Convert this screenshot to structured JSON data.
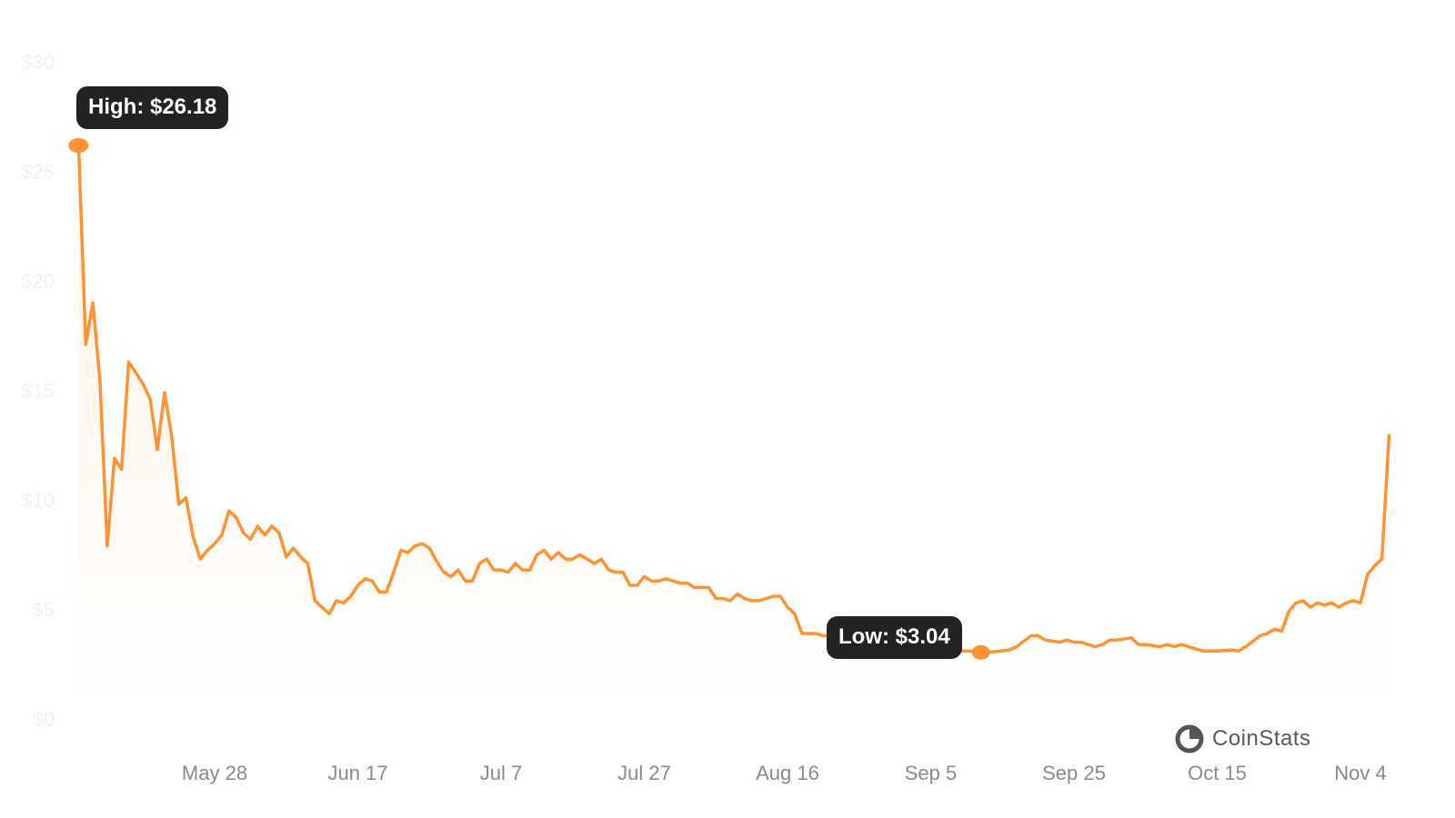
{
  "chart_data": {
    "type": "area",
    "title": "",
    "xlabel": "",
    "ylabel": "",
    "ylim": [
      0,
      30
    ],
    "y_ticks": [
      "$0",
      "$5",
      "$10",
      "$15",
      "$20",
      "$25",
      "$30"
    ],
    "y_tick_values": [
      0,
      5,
      10,
      15,
      20,
      25,
      30
    ],
    "x_ticks": [
      "May 28",
      "Jun 17",
      "Jul 7",
      "Jul 27",
      "Aug 16",
      "Sep 5",
      "Sep 25",
      "Oct 15",
      "Nov 4"
    ],
    "grid": false,
    "line_color": "#ff9332",
    "fill_color": "#ff9332",
    "points": [
      [
        "May 9",
        26.18
      ],
      [
        "May 10",
        17.1
      ],
      [
        "May 11",
        19.0
      ],
      [
        "May 12",
        15.4
      ],
      [
        "May 13",
        7.9
      ],
      [
        "May 14",
        11.9
      ],
      [
        "May 15",
        11.4
      ],
      [
        "May 16",
        16.3
      ],
      [
        "May 17",
        15.8
      ],
      [
        "May 18",
        15.3
      ],
      [
        "May 19",
        14.6
      ],
      [
        "May 20",
        12.3
      ],
      [
        "May 21",
        14.9
      ],
      [
        "May 22",
        12.9
      ],
      [
        "May 23",
        9.8
      ],
      [
        "May 24",
        10.1
      ],
      [
        "May 25",
        8.3
      ],
      [
        "May 26",
        7.3
      ],
      [
        "May 27",
        7.7
      ],
      [
        "May 28",
        8.0
      ],
      [
        "May 29",
        8.4
      ],
      [
        "May 30",
        9.5
      ],
      [
        "May 31",
        9.2
      ],
      [
        "Jun 1",
        8.5
      ],
      [
        "Jun 2",
        8.2
      ],
      [
        "Jun 3",
        8.8
      ],
      [
        "Jun 4",
        8.4
      ],
      [
        "Jun 5",
        8.8
      ],
      [
        "Jun 6",
        8.5
      ],
      [
        "Jun 7",
        7.4
      ],
      [
        "Jun 8",
        7.8
      ],
      [
        "Jun 9",
        7.4
      ],
      [
        "Jun 10",
        7.1
      ],
      [
        "Jun 11",
        5.4
      ],
      [
        "Jun 12",
        5.1
      ],
      [
        "Jun 13",
        4.8
      ],
      [
        "Jun 14",
        5.4
      ],
      [
        "Jun 15",
        5.3
      ],
      [
        "Jun 16",
        5.6
      ],
      [
        "Jun 17",
        6.1
      ],
      [
        "Jun 18",
        6.4
      ],
      [
        "Jun 19",
        6.3
      ],
      [
        "Jun 20",
        5.8
      ],
      [
        "Jun 21",
        5.8
      ],
      [
        "Jun 22",
        6.7
      ],
      [
        "Jun 23",
        7.7
      ],
      [
        "Jun 24",
        7.6
      ],
      [
        "Jun 25",
        7.9
      ],
      [
        "Jun 26",
        8.0
      ],
      [
        "Jun 27",
        7.8
      ],
      [
        "Jun 28",
        7.2
      ],
      [
        "Jun 29",
        6.7
      ],
      [
        "Jun 30",
        6.5
      ],
      [
        "Jul 1",
        6.8
      ],
      [
        "Jul 2",
        6.3
      ],
      [
        "Jul 3",
        6.3
      ],
      [
        "Jul 4",
        7.1
      ],
      [
        "Jul 5",
        7.3
      ],
      [
        "Jul 6",
        6.8
      ],
      [
        "Jul 7",
        6.8
      ],
      [
        "Jul 8",
        6.7
      ],
      [
        "Jul 9",
        7.1
      ],
      [
        "Jul 10",
        6.8
      ],
      [
        "Jul 11",
        6.8
      ],
      [
        "Jul 12",
        7.5
      ],
      [
        "Jul 13",
        7.7
      ],
      [
        "Jul 14",
        7.3
      ],
      [
        "Jul 15",
        7.6
      ],
      [
        "Jul 16",
        7.3
      ],
      [
        "Jul 17",
        7.3
      ],
      [
        "Jul 18",
        7.5
      ],
      [
        "Jul 19",
        7.3
      ],
      [
        "Jul 20",
        7.1
      ],
      [
        "Jul 21",
        7.3
      ],
      [
        "Jul 22",
        6.8
      ],
      [
        "Jul 23",
        6.7
      ],
      [
        "Jul 24",
        6.7
      ],
      [
        "Jul 25",
        6.1
      ],
      [
        "Jul 26",
        6.1
      ],
      [
        "Jul 27",
        6.5
      ],
      [
        "Jul 28",
        6.3
      ],
      [
        "Jul 29",
        6.3
      ],
      [
        "Jul 30",
        6.4
      ],
      [
        "Jul 31",
        6.3
      ],
      [
        "Aug 1",
        6.2
      ],
      [
        "Aug 2",
        6.2
      ],
      [
        "Aug 3",
        6.0
      ],
      [
        "Aug 4",
        6.0
      ],
      [
        "Aug 5",
        6.0
      ],
      [
        "Aug 6",
        5.5
      ],
      [
        "Aug 7",
        5.5
      ],
      [
        "Aug 8",
        5.4
      ],
      [
        "Aug 9",
        5.7
      ],
      [
        "Aug 10",
        5.5
      ],
      [
        "Aug 11",
        5.4
      ],
      [
        "Aug 12",
        5.4
      ],
      [
        "Aug 13",
        5.5
      ],
      [
        "Aug 14",
        5.6
      ],
      [
        "Aug 15",
        5.6
      ],
      [
        "Aug 16",
        5.1
      ],
      [
        "Aug 17",
        4.8
      ],
      [
        "Aug 18",
        3.9
      ],
      [
        "Aug 19",
        3.9
      ],
      [
        "Aug 20",
        3.9
      ],
      [
        "Aug 21",
        3.8
      ],
      [
        "Aug 22",
        3.8
      ],
      [
        "Aug 23",
        3.7
      ],
      [
        "Aug 24",
        3.7
      ],
      [
        "Aug 25",
        3.6
      ],
      [
        "Aug 26",
        3.6
      ],
      [
        "Aug 27",
        3.6
      ],
      [
        "Aug 28",
        3.5
      ],
      [
        "Aug 29",
        3.5
      ],
      [
        "Aug 30",
        3.5
      ],
      [
        "Aug 31",
        3.4
      ],
      [
        "Sep 1",
        3.4
      ],
      [
        "Sep 2",
        3.4
      ],
      [
        "Sep 3",
        3.3
      ],
      [
        "Sep 4",
        3.3
      ],
      [
        "Sep 5",
        3.3
      ],
      [
        "Sep 6",
        3.2
      ],
      [
        "Sep 7",
        3.2
      ],
      [
        "Sep 8",
        3.2
      ],
      [
        "Sep 9",
        3.1
      ],
      [
        "Sep 10",
        3.1
      ],
      [
        "Sep 11",
        3.1
      ],
      [
        "Sep 12",
        3.04
      ],
      [
        "Sep 14",
        3.07
      ],
      [
        "Sep 16",
        3.15
      ],
      [
        "Sep 17",
        3.3
      ],
      [
        "Sep 19",
        3.8
      ],
      [
        "Sep 20",
        3.8
      ],
      [
        "Sep 21",
        3.6
      ],
      [
        "Sep 23",
        3.5
      ],
      [
        "Sep 24",
        3.6
      ],
      [
        "Sep 25",
        3.5
      ],
      [
        "Sep 26",
        3.5
      ],
      [
        "Sep 28",
        3.3
      ],
      [
        "Sep 29",
        3.4
      ],
      [
        "Sep 30",
        3.6
      ],
      [
        "Oct 1",
        3.6
      ],
      [
        "Oct 3",
        3.7
      ],
      [
        "Oct 4",
        3.4
      ],
      [
        "Oct 5",
        3.4
      ],
      [
        "Oct 7",
        3.3
      ],
      [
        "Oct 8",
        3.4
      ],
      [
        "Oct 9",
        3.3
      ],
      [
        "Oct 10",
        3.4
      ],
      [
        "Oct 12",
        3.2
      ],
      [
        "Oct 13",
        3.1
      ],
      [
        "Oct 14",
        3.1
      ],
      [
        "Oct 15",
        3.1
      ],
      [
        "Oct 17",
        3.15
      ],
      [
        "Oct 18",
        3.1
      ],
      [
        "Oct 19",
        3.3
      ],
      [
        "Oct 21",
        3.8
      ],
      [
        "Oct 22",
        3.9
      ],
      [
        "Oct 23",
        4.1
      ],
      [
        "Oct 24",
        4.0
      ],
      [
        "Oct 25",
        4.9
      ],
      [
        "Oct 26",
        5.3
      ],
      [
        "Oct 27",
        5.4
      ],
      [
        "Oct 28",
        5.1
      ],
      [
        "Oct 29",
        5.3
      ],
      [
        "Oct 30",
        5.2
      ],
      [
        "Oct 31",
        5.3
      ],
      [
        "Nov 1",
        5.1
      ],
      [
        "Nov 2",
        5.3
      ],
      [
        "Nov 3",
        5.4
      ],
      [
        "Nov 4",
        5.3
      ],
      [
        "Nov 5",
        6.6
      ],
      [
        "Nov 6",
        7.0
      ],
      [
        "Nov 7",
        7.3
      ],
      [
        "Nov 8",
        13.0
      ]
    ],
    "annotations": {
      "high": {
        "label": "High: $26.18",
        "date": "May 9",
        "value": 26.18
      },
      "low": {
        "label": "Low: $3.04",
        "date": "Sep 12",
        "value": 3.04
      }
    }
  },
  "brand": {
    "name": "CoinStats",
    "icon": "coinstats-logo-icon"
  }
}
